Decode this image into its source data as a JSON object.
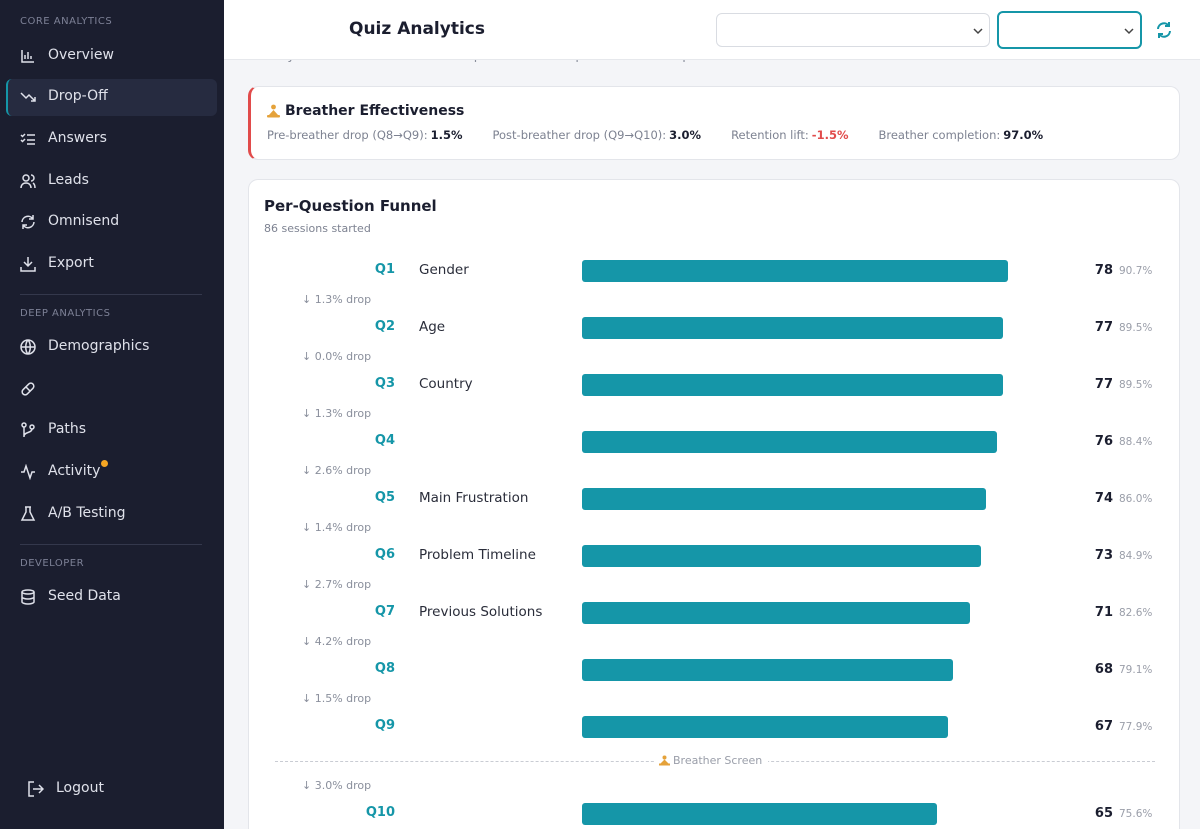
{
  "sidebar": {
    "sections": [
      {
        "title": "CORE ANALYTICS",
        "items": [
          "Overview",
          "Drop-Off",
          "Answers",
          "Leads",
          "Omnisend",
          "Export"
        ]
      },
      {
        "title": "DEEP ANALYTICS",
        "items": [
          "Demographics",
          null,
          "Paths",
          "Activity",
          "A/B Testing"
        ]
      },
      {
        "title": "DEVELOPER",
        "items": [
          "Seed Data"
        ]
      }
    ],
    "active": "Drop-Off",
    "logout": "Logout"
  },
  "header": {
    "title": "Quiz Analytics",
    "subtitle": "Identify where users abandon the quiz and which questions need optimization"
  },
  "breather": {
    "title": "Breather Effectiveness",
    "stats": [
      {
        "label": "Pre-breather drop (Q8→Q9):",
        "value": "1.5%"
      },
      {
        "label": "Post-breather drop (Q9→Q10):",
        "value": "3.0%"
      },
      {
        "label": "Retention lift:",
        "value": "-1.5%",
        "negative": true
      },
      {
        "label": "Breather completion:",
        "value": "97.0%"
      }
    ]
  },
  "funnel": {
    "title": "Per-Question Funnel",
    "subtitle": "86 sessions started",
    "rows": [
      {
        "q": "Q1",
        "label": "Gender",
        "count": 78,
        "pct": "90.7%"
      },
      {
        "q": "Q2",
        "label": "Age",
        "count": 77,
        "pct": "89.5%",
        "drop": "↓ 1.3% drop"
      },
      {
        "q": "Q3",
        "label": "Country",
        "count": 77,
        "pct": "89.5%",
        "drop": "↓ 0.0% drop"
      },
      {
        "q": "Q4",
        "count": 76,
        "pct": "88.4%",
        "drop": "↓ 1.3% drop"
      },
      {
        "q": "Q5",
        "label": "Main Frustration",
        "count": 74,
        "pct": "86.0%",
        "drop": "↓ 2.6% drop"
      },
      {
        "q": "Q6",
        "label": "Problem Timeline",
        "count": 73,
        "pct": "84.9%",
        "drop": "↓ 1.4% drop"
      },
      {
        "q": "Q7",
        "label": "Previous Solutions",
        "count": 71,
        "pct": "82.6%",
        "drop": "↓ 2.7% drop"
      },
      {
        "q": "Q8",
        "count": 68,
        "pct": "79.1%",
        "drop": "↓ 4.2% drop"
      },
      {
        "q": "Q9",
        "count": 67,
        "pct": "77.9%",
        "drop": "↓ 1.5% drop"
      },
      {
        "q": "Q10",
        "count": 65,
        "pct": "75.6%",
        "drop": "↓ 3.0% drop",
        "breather": "Breather Screen"
      }
    ]
  }
}
